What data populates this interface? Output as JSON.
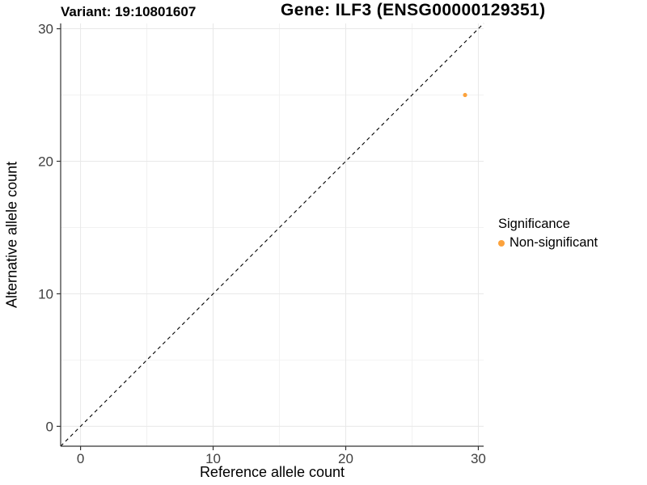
{
  "chart_data": {
    "type": "scatter",
    "title_left": "Variant: 19:10801607",
    "title_right": "Gene: ILF3 (ENSG00000129351)",
    "xlabel": "Reference allele count",
    "ylabel": "Alternative allele count",
    "xlim": [
      -1.5,
      30.4
    ],
    "ylim": [
      -1.5,
      30.4
    ],
    "xticks": [
      0,
      10,
      20,
      30
    ],
    "yticks": [
      0,
      10,
      20,
      30
    ],
    "minor_ticks": [
      5,
      15,
      25
    ],
    "grid": "on",
    "identity_line": {
      "style": "dashed",
      "equation": "y = x",
      "color": "#000000"
    },
    "series": [
      {
        "name": "Non-significant",
        "color": "#FCA23C",
        "points": [
          [
            29,
            25
          ]
        ]
      }
    ],
    "legend": {
      "title": "Significance",
      "position": "right",
      "entries": [
        {
          "label": "Non-significant",
          "color": "#FCA23C"
        }
      ]
    }
  }
}
